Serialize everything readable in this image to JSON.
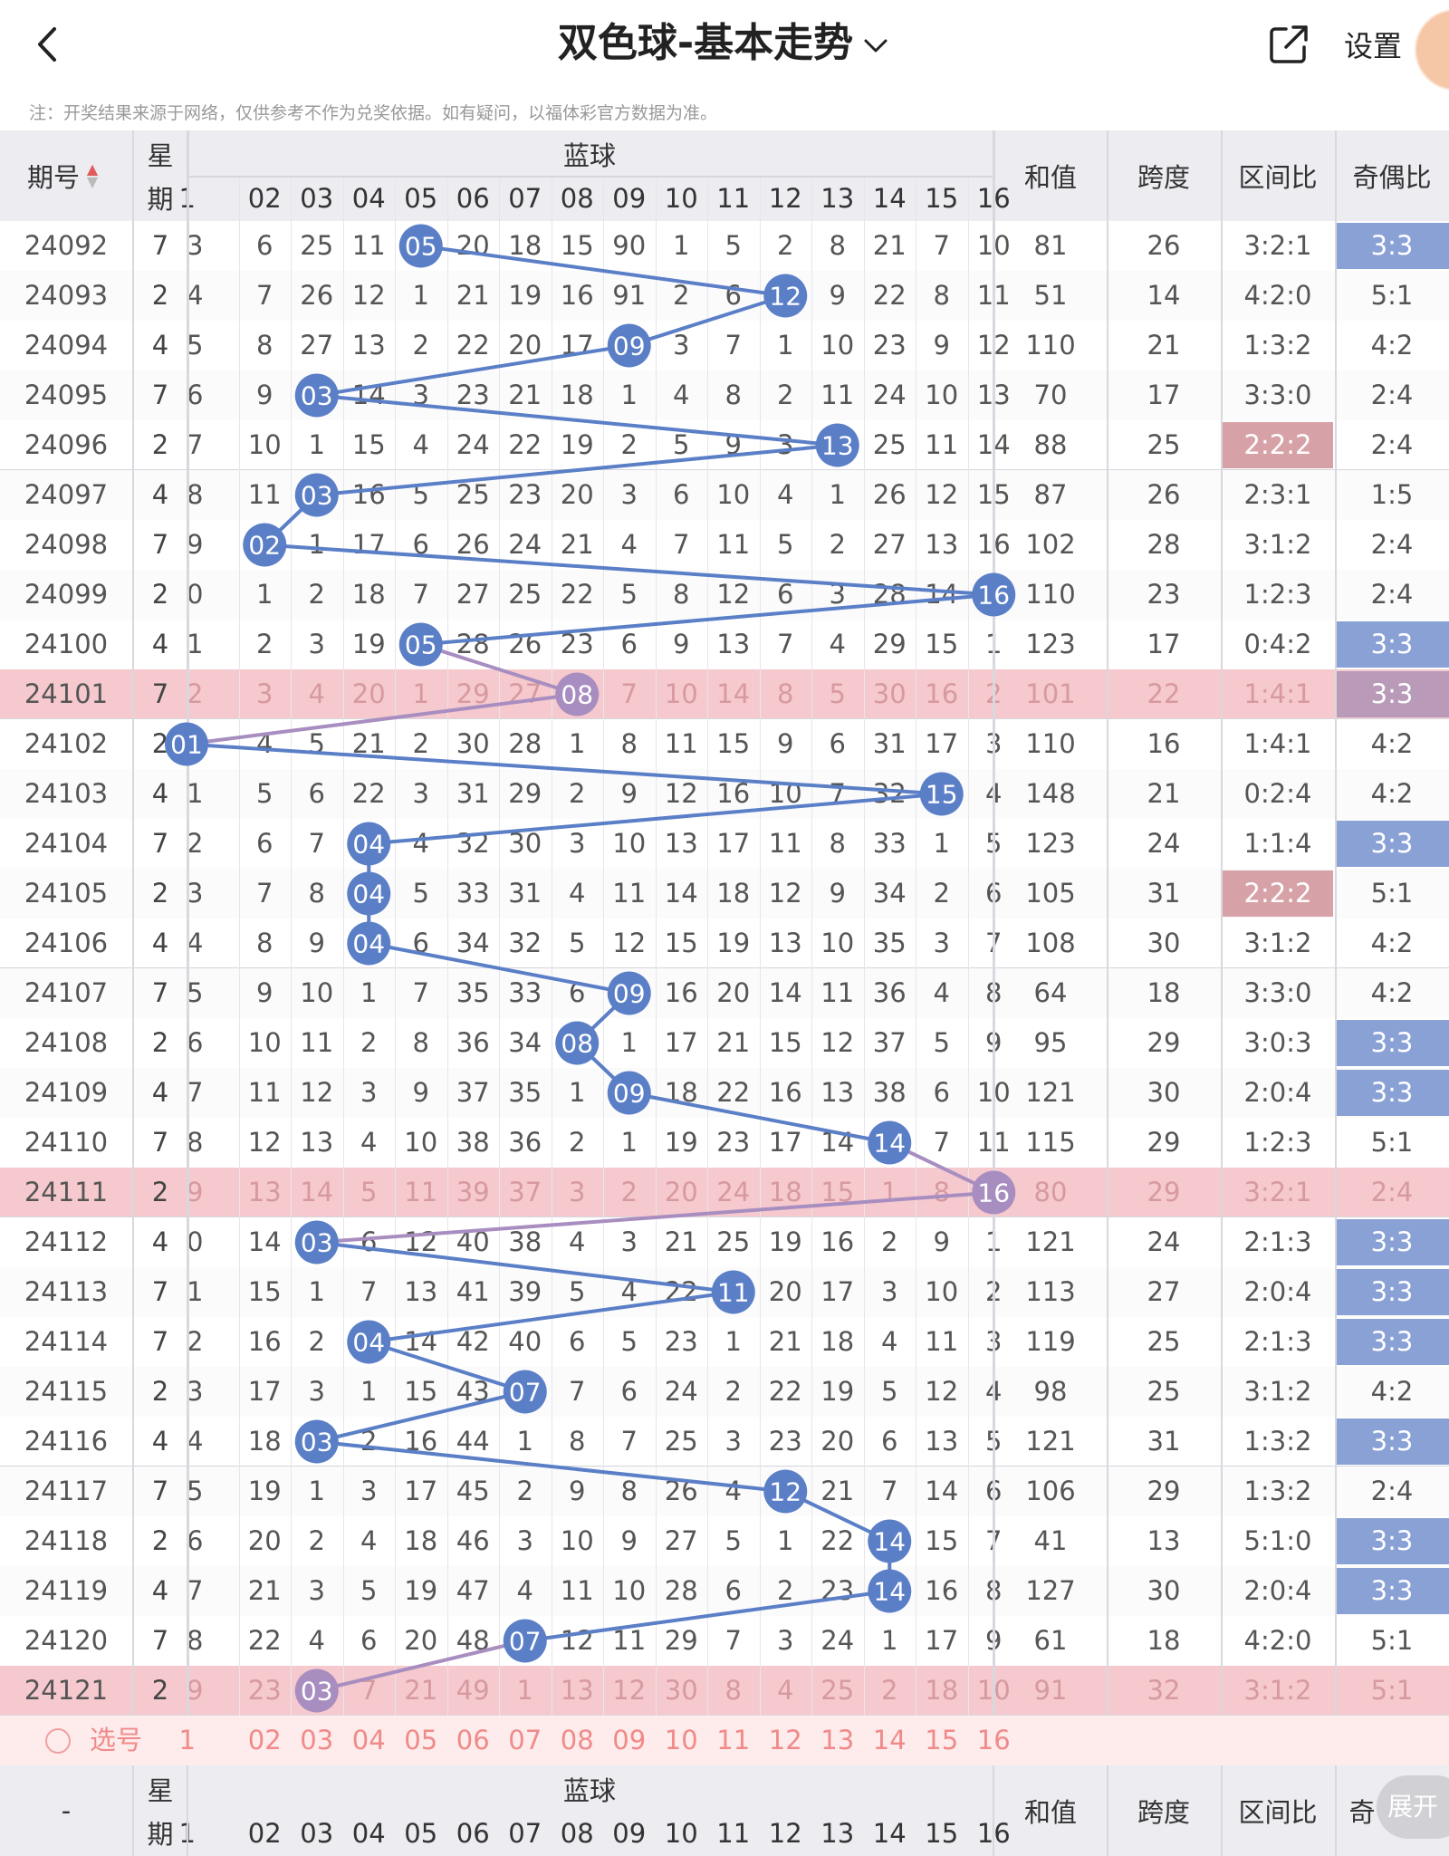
{
  "header": {
    "title": "双色球-基本走势",
    "settings_label": "设置"
  },
  "note": "注：开奖结果来源于网络，仅供参考不作为兑奖依据。如有疑问，以福体彩官方数据为准。",
  "columns": {
    "issue": "期号",
    "weekday_top": "星",
    "weekday_bottom": "期",
    "blue_group": "蓝球",
    "blue_numbers": [
      "1",
      "02",
      "03",
      "04",
      "05",
      "06",
      "07",
      "08",
      "09",
      "10",
      "11",
      "12",
      "13",
      "14",
      "15",
      "16"
    ],
    "sum": "和值",
    "span": "跨度",
    "zone_ratio": "区间比",
    "odd_even": "奇偶比"
  },
  "rows": [
    {
      "issue": "24092",
      "weekday": "7",
      "first": "3",
      "cells": [
        "6",
        "25",
        "11",
        "05",
        "20",
        "18",
        "15",
        "90",
        "1",
        "5",
        "2",
        "8",
        "21",
        "7",
        "10"
      ],
      "sum": "81",
      "span": "26",
      "zone": "3:2:1",
      "parity": "3:3",
      "parity_hl": true,
      "zone_hl": false,
      "row_hl": false
    },
    {
      "issue": "24093",
      "weekday": "2",
      "first": "4",
      "cells": [
        "7",
        "26",
        "12",
        "1",
        "21",
        "19",
        "16",
        "91",
        "2",
        "6",
        "12",
        "9",
        "22",
        "8",
        "11"
      ],
      "sum": "51",
      "span": "14",
      "zone": "4:2:0",
      "parity": "5:1",
      "parity_hl": false,
      "zone_hl": false,
      "row_hl": false
    },
    {
      "issue": "24094",
      "weekday": "4",
      "first": "5",
      "cells": [
        "8",
        "27",
        "13",
        "2",
        "22",
        "20",
        "17",
        "09",
        "3",
        "7",
        "1",
        "10",
        "23",
        "9",
        "12"
      ],
      "sum": "110",
      "span": "21",
      "zone": "1:3:2",
      "parity": "4:2",
      "parity_hl": false,
      "zone_hl": false,
      "row_hl": false
    },
    {
      "issue": "24095",
      "weekday": "7",
      "first": "6",
      "cells": [
        "9",
        "03",
        "14",
        "3",
        "23",
        "21",
        "18",
        "1",
        "4",
        "8",
        "2",
        "11",
        "24",
        "10",
        "13"
      ],
      "sum": "70",
      "span": "17",
      "zone": "3:3:0",
      "parity": "2:4",
      "parity_hl": false,
      "zone_hl": false,
      "row_hl": false
    },
    {
      "issue": "24096",
      "weekday": "2",
      "first": "7",
      "cells": [
        "10",
        "1",
        "15",
        "4",
        "24",
        "22",
        "19",
        "2",
        "5",
        "9",
        "3",
        "13",
        "25",
        "11",
        "14"
      ],
      "sum": "88",
      "span": "25",
      "zone": "2:2:2",
      "parity": "2:4",
      "parity_hl": false,
      "zone_hl": true,
      "row_hl": false
    },
    {
      "issue": "24097",
      "weekday": "4",
      "first": "8",
      "cells": [
        "11",
        "03",
        "16",
        "5",
        "25",
        "23",
        "20",
        "3",
        "6",
        "10",
        "4",
        "1",
        "26",
        "12",
        "15"
      ],
      "sum": "87",
      "span": "26",
      "zone": "2:3:1",
      "parity": "1:5",
      "parity_hl": false,
      "zone_hl": false,
      "row_hl": false
    },
    {
      "issue": "24098",
      "weekday": "7",
      "first": "9",
      "cells": [
        "02",
        "1",
        "17",
        "6",
        "26",
        "24",
        "21",
        "4",
        "7",
        "11",
        "5",
        "2",
        "27",
        "13",
        "16"
      ],
      "sum": "102",
      "span": "28",
      "zone": "3:1:2",
      "parity": "2:4",
      "parity_hl": false,
      "zone_hl": false,
      "row_hl": false
    },
    {
      "issue": "24099",
      "weekday": "2",
      "first": "0",
      "cells": [
        "1",
        "2",
        "18",
        "7",
        "27",
        "25",
        "22",
        "5",
        "8",
        "12",
        "6",
        "3",
        "28",
        "14",
        "16"
      ],
      "sum": "110",
      "span": "23",
      "zone": "1:2:3",
      "parity": "2:4",
      "parity_hl": false,
      "zone_hl": false,
      "row_hl": false
    },
    {
      "issue": "24100",
      "weekday": "4",
      "first": "1",
      "cells": [
        "2",
        "3",
        "19",
        "05",
        "28",
        "26",
        "23",
        "6",
        "9",
        "13",
        "7",
        "4",
        "29",
        "15",
        "1"
      ],
      "sum": "123",
      "span": "17",
      "zone": "0:4:2",
      "parity": "3:3",
      "parity_hl": true,
      "zone_hl": false,
      "row_hl": false
    },
    {
      "issue": "24101",
      "weekday": "7",
      "first": "2",
      "cells": [
        "3",
        "4",
        "20",
        "1",
        "29",
        "27",
        "08",
        "7",
        "10",
        "14",
        "8",
        "5",
        "30",
        "16",
        "2"
      ],
      "sum": "101",
      "span": "22",
      "zone": "1:4:1",
      "parity": "3:3",
      "parity_hl": true,
      "zone_hl": false,
      "row_hl": true
    },
    {
      "issue": "24102",
      "weekday": "2",
      "first": "01",
      "cells": [
        "4",
        "5",
        "21",
        "2",
        "30",
        "28",
        "1",
        "8",
        "11",
        "15",
        "9",
        "6",
        "31",
        "17",
        "3"
      ],
      "sum": "110",
      "span": "16",
      "zone": "1:4:1",
      "parity": "4:2",
      "parity_hl": false,
      "zone_hl": false,
      "row_hl": false
    },
    {
      "issue": "24103",
      "weekday": "4",
      "first": "1",
      "cells": [
        "5",
        "6",
        "22",
        "3",
        "31",
        "29",
        "2",
        "9",
        "12",
        "16",
        "10",
        "7",
        "32",
        "15",
        "4"
      ],
      "sum": "148",
      "span": "21",
      "zone": "0:2:4",
      "parity": "4:2",
      "parity_hl": false,
      "zone_hl": false,
      "row_hl": false
    },
    {
      "issue": "24104",
      "weekday": "7",
      "first": "2",
      "cells": [
        "6",
        "7",
        "04",
        "4",
        "32",
        "30",
        "3",
        "10",
        "13",
        "17",
        "11",
        "8",
        "33",
        "1",
        "5"
      ],
      "sum": "123",
      "span": "24",
      "zone": "1:1:4",
      "parity": "3:3",
      "parity_hl": true,
      "zone_hl": false,
      "row_hl": false
    },
    {
      "issue": "24105",
      "weekday": "2",
      "first": "3",
      "cells": [
        "7",
        "8",
        "04",
        "5",
        "33",
        "31",
        "4",
        "11",
        "14",
        "18",
        "12",
        "9",
        "34",
        "2",
        "6"
      ],
      "sum": "105",
      "span": "31",
      "zone": "2:2:2",
      "parity": "5:1",
      "parity_hl": false,
      "zone_hl": true,
      "row_hl": false
    },
    {
      "issue": "24106",
      "weekday": "4",
      "first": "4",
      "cells": [
        "8",
        "9",
        "04",
        "6",
        "34",
        "32",
        "5",
        "12",
        "15",
        "19",
        "13",
        "10",
        "35",
        "3",
        "7"
      ],
      "sum": "108",
      "span": "30",
      "zone": "3:1:2",
      "parity": "4:2",
      "parity_hl": false,
      "zone_hl": false,
      "row_hl": false
    },
    {
      "issue": "24107",
      "weekday": "7",
      "first": "5",
      "cells": [
        "9",
        "10",
        "1",
        "7",
        "35",
        "33",
        "6",
        "09",
        "16",
        "20",
        "14",
        "11",
        "36",
        "4",
        "8"
      ],
      "sum": "64",
      "span": "18",
      "zone": "3:3:0",
      "parity": "4:2",
      "parity_hl": false,
      "zone_hl": false,
      "row_hl": false
    },
    {
      "issue": "24108",
      "weekday": "2",
      "first": "6",
      "cells": [
        "10",
        "11",
        "2",
        "8",
        "36",
        "34",
        "08",
        "1",
        "17",
        "21",
        "15",
        "12",
        "37",
        "5",
        "9"
      ],
      "sum": "95",
      "span": "29",
      "zone": "3:0:3",
      "parity": "3:3",
      "parity_hl": true,
      "zone_hl": false,
      "row_hl": false
    },
    {
      "issue": "24109",
      "weekday": "4",
      "first": "7",
      "cells": [
        "11",
        "12",
        "3",
        "9",
        "37",
        "35",
        "1",
        "09",
        "18",
        "22",
        "16",
        "13",
        "38",
        "6",
        "10"
      ],
      "sum": "121",
      "span": "30",
      "zone": "2:0:4",
      "parity": "3:3",
      "parity_hl": true,
      "zone_hl": false,
      "row_hl": false
    },
    {
      "issue": "24110",
      "weekday": "7",
      "first": "8",
      "cells": [
        "12",
        "13",
        "4",
        "10",
        "38",
        "36",
        "2",
        "1",
        "19",
        "23",
        "17",
        "14",
        "14",
        "7",
        "11"
      ],
      "sum": "115",
      "span": "29",
      "zone": "1:2:3",
      "parity": "5:1",
      "parity_hl": false,
      "zone_hl": false,
      "row_hl": false
    },
    {
      "issue": "24111",
      "weekday": "2",
      "first": "9",
      "cells": [
        "13",
        "14",
        "5",
        "11",
        "39",
        "37",
        "3",
        "2",
        "20",
        "24",
        "18",
        "15",
        "1",
        "8",
        "16"
      ],
      "sum": "80",
      "span": "29",
      "zone": "3:2:1",
      "parity": "2:4",
      "parity_hl": false,
      "zone_hl": false,
      "row_hl": true
    },
    {
      "issue": "24112",
      "weekday": "4",
      "first": "0",
      "cells": [
        "14",
        "03",
        "6",
        "12",
        "40",
        "38",
        "4",
        "3",
        "21",
        "25",
        "19",
        "16",
        "2",
        "9",
        "1"
      ],
      "sum": "121",
      "span": "24",
      "zone": "2:1:3",
      "parity": "3:3",
      "parity_hl": true,
      "zone_hl": false,
      "row_hl": false
    },
    {
      "issue": "24113",
      "weekday": "7",
      "first": "1",
      "cells": [
        "15",
        "1",
        "7",
        "13",
        "41",
        "39",
        "5",
        "4",
        "22",
        "11",
        "20",
        "17",
        "3",
        "10",
        "2"
      ],
      "sum": "113",
      "span": "27",
      "zone": "2:0:4",
      "parity": "3:3",
      "parity_hl": true,
      "zone_hl": false,
      "row_hl": false
    },
    {
      "issue": "24114",
      "weekday": "7",
      "first": "2",
      "cells": [
        "16",
        "2",
        "04",
        "14",
        "42",
        "40",
        "6",
        "5",
        "23",
        "1",
        "21",
        "18",
        "4",
        "11",
        "3"
      ],
      "sum": "119",
      "span": "25",
      "zone": "2:1:3",
      "parity": "3:3",
      "parity_hl": true,
      "zone_hl": false,
      "row_hl": false
    },
    {
      "issue": "24115",
      "weekday": "2",
      "first": "3",
      "cells": [
        "17",
        "3",
        "1",
        "15",
        "43",
        "07",
        "7",
        "6",
        "24",
        "2",
        "22",
        "19",
        "5",
        "12",
        "4"
      ],
      "sum": "98",
      "span": "25",
      "zone": "3:1:2",
      "parity": "4:2",
      "parity_hl": false,
      "zone_hl": false,
      "row_hl": false
    },
    {
      "issue": "24116",
      "weekday": "4",
      "first": "4",
      "cells": [
        "18",
        "03",
        "2",
        "16",
        "44",
        "1",
        "8",
        "7",
        "25",
        "3",
        "23",
        "20",
        "6",
        "13",
        "5"
      ],
      "sum": "121",
      "span": "31",
      "zone": "1:3:2",
      "parity": "3:3",
      "parity_hl": true,
      "zone_hl": false,
      "row_hl": false
    },
    {
      "issue": "24117",
      "weekday": "7",
      "first": "5",
      "cells": [
        "19",
        "1",
        "3",
        "17",
        "45",
        "2",
        "9",
        "8",
        "26",
        "4",
        "12",
        "21",
        "7",
        "14",
        "6"
      ],
      "sum": "106",
      "span": "29",
      "zone": "1:3:2",
      "parity": "2:4",
      "parity_hl": false,
      "zone_hl": false,
      "row_hl": false
    },
    {
      "issue": "24118",
      "weekday": "2",
      "first": "6",
      "cells": [
        "20",
        "2",
        "4",
        "18",
        "46",
        "3",
        "10",
        "9",
        "27",
        "5",
        "1",
        "22",
        "14",
        "15",
        "7"
      ],
      "sum": "41",
      "span": "13",
      "zone": "5:1:0",
      "parity": "3:3",
      "parity_hl": true,
      "zone_hl": false,
      "row_hl": false
    },
    {
      "issue": "24119",
      "weekday": "4",
      "first": "7",
      "cells": [
        "21",
        "3",
        "5",
        "19",
        "47",
        "4",
        "11",
        "10",
        "28",
        "6",
        "2",
        "23",
        "14",
        "16",
        "8"
      ],
      "sum": "127",
      "span": "30",
      "zone": "2:0:4",
      "parity": "3:3",
      "parity_hl": true,
      "zone_hl": false,
      "row_hl": false
    },
    {
      "issue": "24120",
      "weekday": "7",
      "first": "8",
      "cells": [
        "22",
        "4",
        "6",
        "20",
        "48",
        "07",
        "12",
        "11",
        "29",
        "7",
        "3",
        "24",
        "1",
        "17",
        "9"
      ],
      "sum": "61",
      "span": "18",
      "zone": "4:2:0",
      "parity": "5:1",
      "parity_hl": false,
      "zone_hl": false,
      "row_hl": false
    },
    {
      "issue": "24121",
      "weekday": "2",
      "first": "9",
      "cells": [
        "23",
        "03",
        "7",
        "21",
        "49",
        "1",
        "13",
        "12",
        "30",
        "8",
        "4",
        "25",
        "2",
        "18",
        "10"
      ],
      "sum": "91",
      "span": "32",
      "zone": "3:1:2",
      "parity": "5:1",
      "parity_hl": false,
      "zone_hl": false,
      "row_hl": true
    }
  ],
  "drawn_blue": [
    5,
    12,
    9,
    3,
    13,
    3,
    2,
    16,
    5,
    8,
    1,
    15,
    4,
    4,
    4,
    9,
    8,
    9,
    14,
    16,
    3,
    11,
    4,
    7,
    3,
    12,
    14,
    14,
    7,
    3
  ],
  "select_row": {
    "label": "选号",
    "numbers": [
      "1",
      "02",
      "03",
      "04",
      "05",
      "06",
      "07",
      "08",
      "09",
      "10",
      "11",
      "12",
      "13",
      "14",
      "15",
      "16"
    ]
  },
  "footer": {
    "issue": "-",
    "zone_label": "区间比",
    "odd_label": "奇",
    "expand_label": "展开"
  },
  "colors": {
    "blue_ball": "#5b7fc7",
    "row_highlight": "#f5c9cd",
    "parity_highlight": "#8aa1d6",
    "zone_highlight": "#d7a2a7",
    "header_bg": "#ececf1"
  }
}
